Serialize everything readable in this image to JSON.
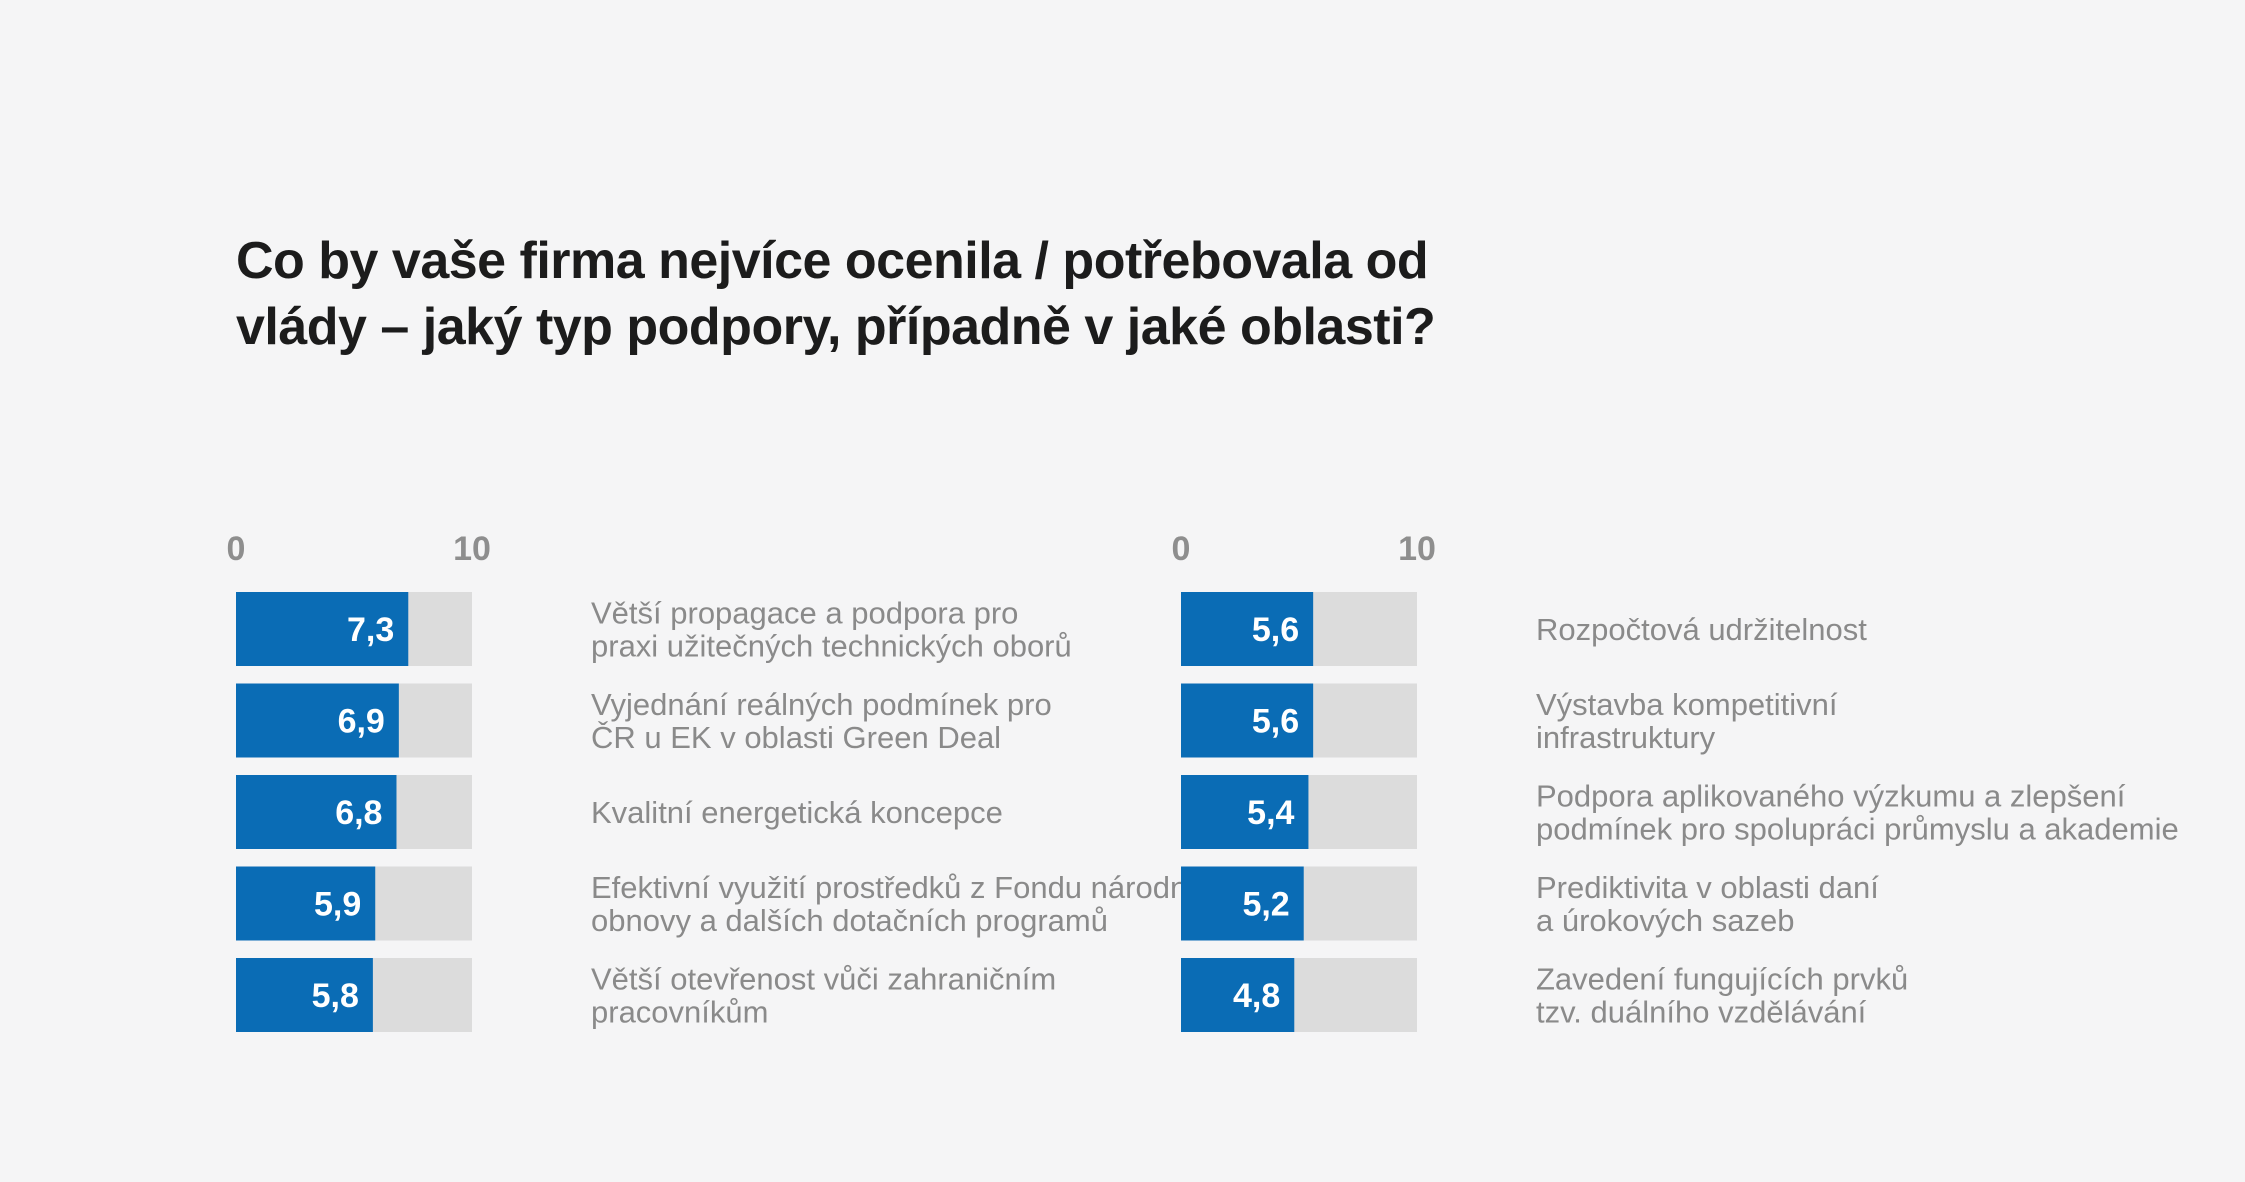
{
  "title": {
    "line1": "Co by vaše firma nejvíce ocenila / potřebovala od",
    "line2": "vlády – jaký typ podpory, případně v jaké oblasti?"
  },
  "colors": {
    "bar": "#0a6cb5",
    "track": "#dcdcdc",
    "label": "#8a8a8a",
    "background": "#f5f5f6"
  },
  "chart_data": [
    {
      "type": "bar",
      "orientation": "horizontal",
      "xlim": [
        0,
        10
      ],
      "ticks": [
        "0",
        "10"
      ],
      "categories": [
        [
          "Větší propagace a podpora pro",
          "praxi užitečných technických oborů"
        ],
        [
          "Vyjednání reálných podmínek pro",
          "ČR u EK v oblasti Green Deal"
        ],
        [
          "Kvalitní energetická koncepce"
        ],
        [
          "Efektivní využití prostředků z Fondu národní",
          "obnovy a dalších dotačních programů"
        ],
        [
          "Větší otevřenost vůči zahraničním",
          "pracovníkům"
        ]
      ],
      "values": [
        7.3,
        6.9,
        6.8,
        5.9,
        5.8
      ],
      "value_labels": [
        "7,3",
        "6,9",
        "6,8",
        "5,9",
        "5,8"
      ]
    },
    {
      "type": "bar",
      "orientation": "horizontal",
      "xlim": [
        0,
        10
      ],
      "ticks": [
        "0",
        "10"
      ],
      "categories": [
        [
          "Rozpočtová udržitelnost"
        ],
        [
          "Výstavba kompetitivní",
          "infrastruktury"
        ],
        [
          "Podpora aplikovaného výzkumu a zlepšení",
          "podmínek pro spolupráci průmyslu a akademie"
        ],
        [
          "Prediktivita v oblasti daní",
          "a úrokových sazeb"
        ],
        [
          "Zavedení fungujících prvků",
          "tzv. duálního vzdělávání"
        ]
      ],
      "values": [
        5.6,
        5.6,
        5.4,
        5.2,
        4.8
      ],
      "value_labels": [
        "5,6",
        "5,6",
        "5,4",
        "5,2",
        "4,8"
      ]
    }
  ]
}
